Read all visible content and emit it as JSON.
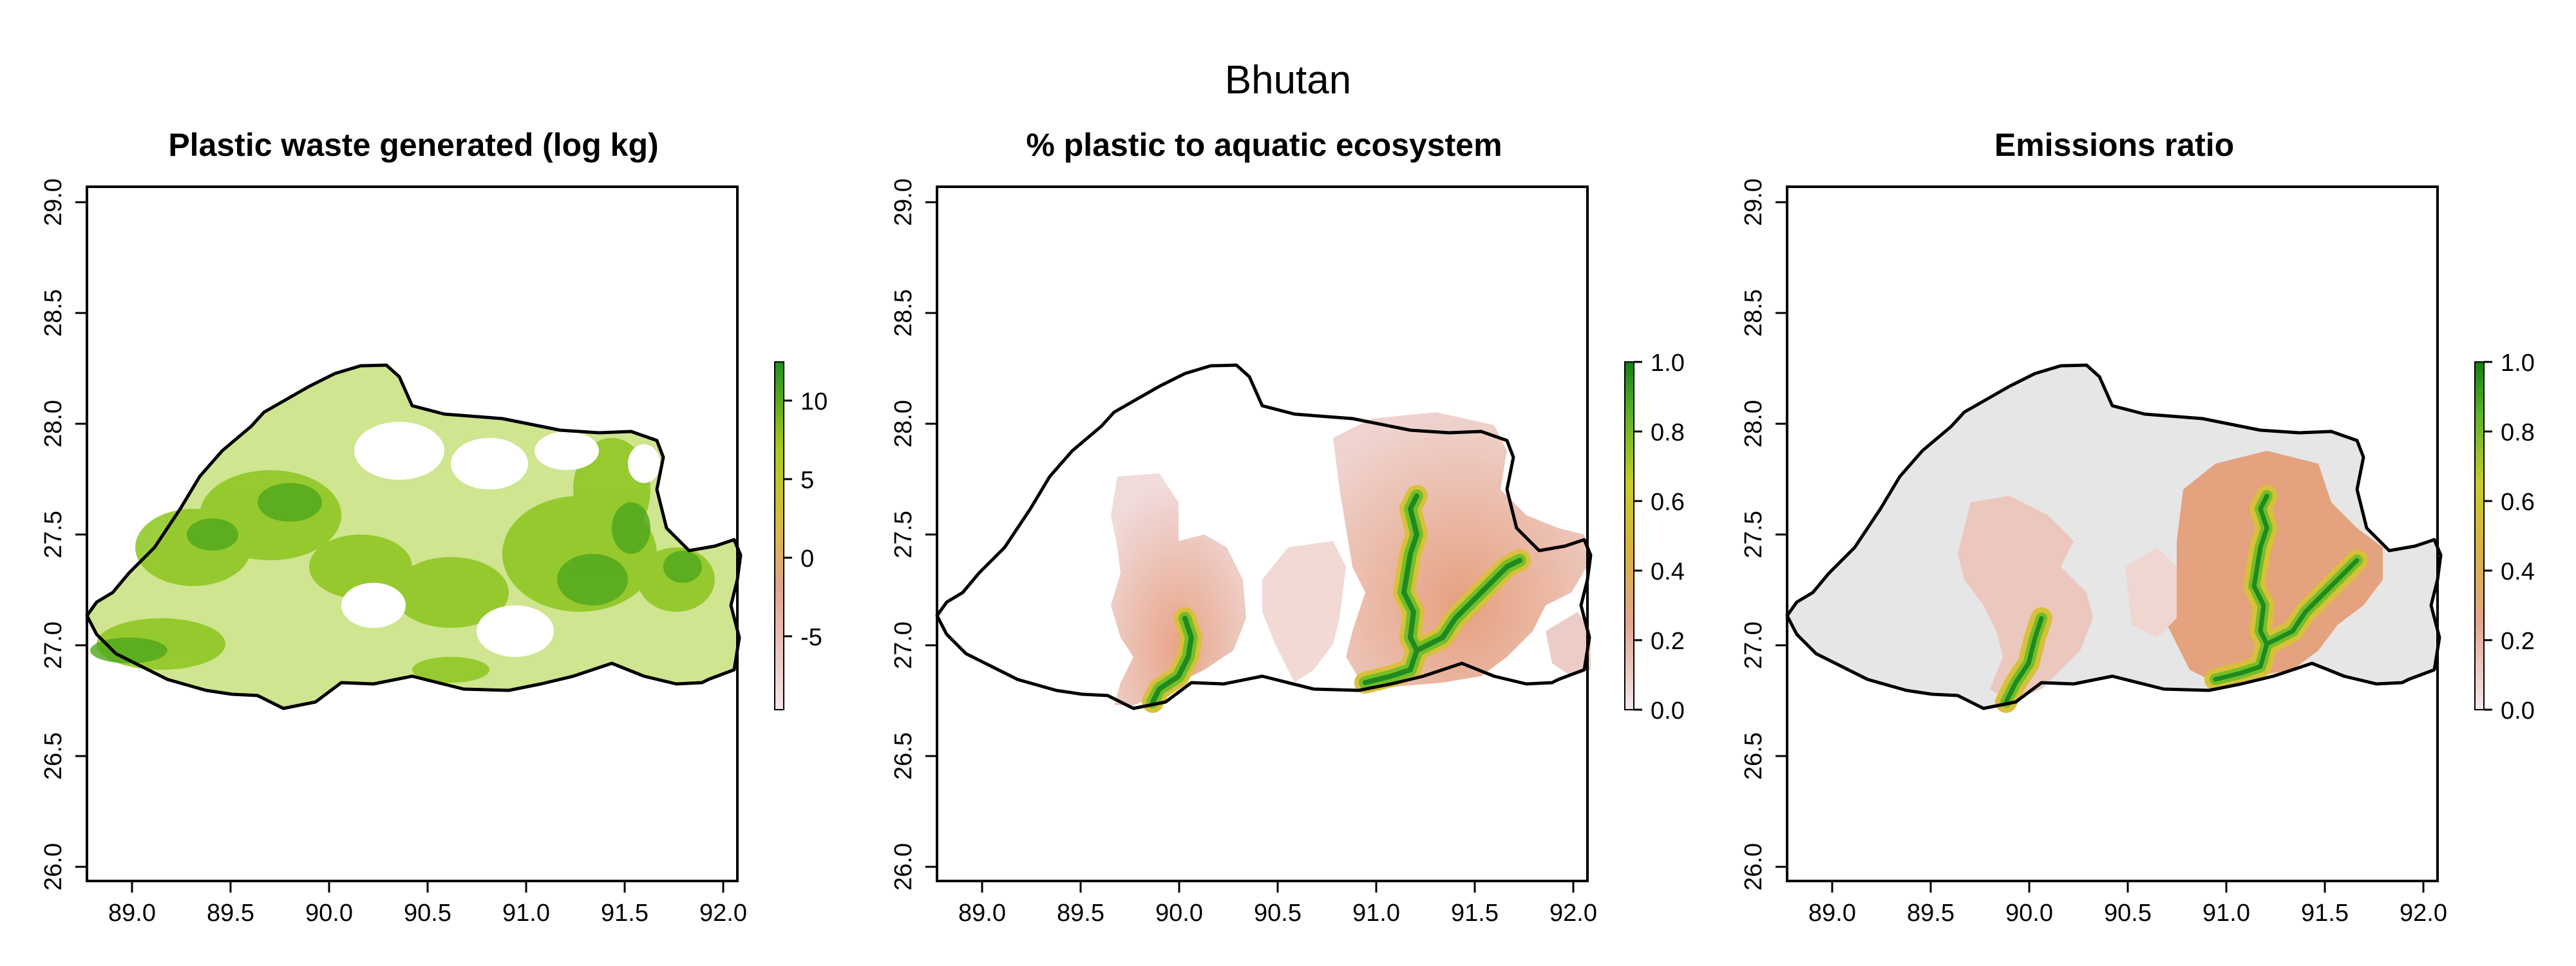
{
  "figure_title": "Bhutan",
  "panels": [
    {
      "title": "Plastic waste generated (log kg)",
      "x_ticks": [
        "89.0",
        "89.5",
        "90.0",
        "90.5",
        "91.0",
        "91.5",
        "92.0"
      ],
      "y_ticks": [
        "26.0",
        "26.5",
        "27.0",
        "27.5",
        "28.0",
        "28.5",
        "29.0"
      ],
      "legend_ticks": [
        "10",
        "5",
        "0",
        "-5"
      ]
    },
    {
      "title": "% plastic to aquatic ecosystem",
      "x_ticks": [
        "89.0",
        "89.5",
        "90.0",
        "90.5",
        "91.0",
        "91.5",
        "92.0"
      ],
      "y_ticks": [
        "26.0",
        "26.5",
        "27.0",
        "27.5",
        "28.0",
        "28.5",
        "29.0"
      ],
      "legend_ticks": [
        "1.0",
        "0.8",
        "0.6",
        "0.4",
        "0.2",
        "0.0"
      ]
    },
    {
      "title": "Emissions ratio",
      "x_ticks": [
        "89.0",
        "89.5",
        "90.0",
        "90.5",
        "91.0",
        "91.5",
        "92.0"
      ],
      "y_ticks": [
        "26.0",
        "26.5",
        "27.0",
        "27.5",
        "28.0",
        "28.5",
        "29.0"
      ],
      "legend_ticks": [
        "1.0",
        "0.8",
        "0.6",
        "0.4",
        "0.2",
        "0.0"
      ]
    }
  ],
  "colors": {
    "low": "#f2e4e4",
    "mid_low": "#e4a88a",
    "mid": "#d9b441",
    "high_mid": "#b8d22a",
    "high": "#1e8c1e",
    "background_cells": "#e6e6e6"
  }
}
